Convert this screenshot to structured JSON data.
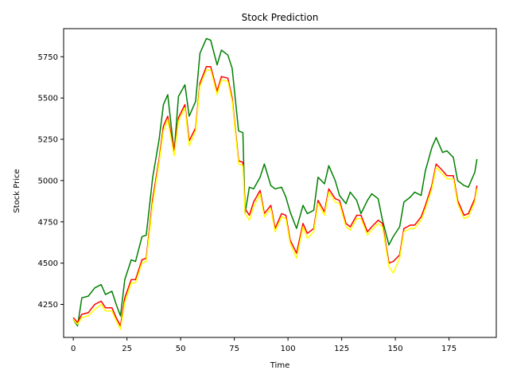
{
  "chart_data": {
    "type": "line",
    "title": "Stock Prediction",
    "xlabel": "Time",
    "ylabel": "Stock Price",
    "xlim": [
      -4.5,
      197
    ],
    "ylim": [
      4050,
      5920
    ],
    "xticks": [
      0,
      25,
      50,
      75,
      100,
      125,
      150,
      175
    ],
    "yticks": [
      4250,
      4500,
      4750,
      5000,
      5250,
      5500,
      5750
    ],
    "grid": false,
    "legend": "none",
    "series": [
      {
        "color": "#008000",
        "x": [
          0,
          2,
          4,
          7,
          10,
          13,
          15,
          18,
          20,
          22,
          24,
          27,
          29,
          32,
          34,
          37,
          40,
          42,
          44,
          47,
          49,
          52,
          54,
          57,
          59,
          62,
          64,
          67,
          69,
          72,
          74,
          77,
          79,
          80,
          82,
          84,
          87,
          89,
          92,
          94,
          97,
          99,
          101,
          104,
          107,
          109,
          112,
          114,
          117,
          119,
          122,
          124,
          127,
          129,
          132,
          134,
          137,
          139,
          142,
          144,
          147,
          149,
          152,
          154,
          157,
          159,
          162,
          164,
          167,
          169,
          172,
          174,
          177,
          179,
          182,
          184,
          187,
          188
        ],
        "values": [
          4160,
          4120,
          4290,
          4300,
          4350,
          4370,
          4310,
          4330,
          4250,
          4180,
          4400,
          4520,
          4510,
          4660,
          4670,
          5020,
          5250,
          5460,
          5520,
          5170,
          5510,
          5580,
          5390,
          5480,
          5770,
          5860,
          5850,
          5700,
          5790,
          5760,
          5680,
          5300,
          5290,
          4800,
          4960,
          4950,
          5020,
          5100,
          4970,
          4950,
          4960,
          4900,
          4810,
          4710,
          4850,
          4800,
          4820,
          5020,
          4980,
          5090,
          5000,
          4910,
          4860,
          4930,
          4880,
          4800,
          4880,
          4920,
          4890,
          4760,
          4610,
          4660,
          4720,
          4870,
          4900,
          4930,
          4910,
          5060,
          5200,
          5260,
          5170,
          5180,
          5140,
          5000,
          4970,
          4960,
          5050,
          5130
        ]
      },
      {
        "color": "#ff0000",
        "x": [
          0,
          2,
          4,
          7,
          10,
          13,
          15,
          18,
          20,
          22,
          24,
          27,
          29,
          32,
          34,
          37,
          40,
          42,
          44,
          47,
          49,
          52,
          54,
          57,
          59,
          62,
          64,
          67,
          69,
          72,
          74,
          77,
          79,
          80,
          82,
          84,
          87,
          89,
          92,
          94,
          97,
          99,
          101,
          104,
          107,
          109,
          112,
          114,
          117,
          119,
          122,
          124,
          127,
          129,
          132,
          134,
          137,
          139,
          142,
          144,
          147,
          149,
          152,
          154,
          157,
          159,
          162,
          164,
          167,
          169,
          172,
          174,
          177,
          179,
          182,
          184,
          187,
          188
        ],
        "values": [
          4170,
          4140,
          4190,
          4200,
          4250,
          4270,
          4230,
          4230,
          4170,
          4120,
          4290,
          4400,
          4400,
          4520,
          4530,
          4890,
          5130,
          5330,
          5390,
          5180,
          5380,
          5460,
          5240,
          5320,
          5590,
          5690,
          5690,
          5540,
          5630,
          5620,
          5500,
          5120,
          5110,
          4830,
          4790,
          4870,
          4940,
          4800,
          4850,
          4710,
          4800,
          4790,
          4640,
          4560,
          4740,
          4680,
          4710,
          4880,
          4810,
          4950,
          4890,
          4880,
          4740,
          4720,
          4790,
          4790,
          4690,
          4720,
          4760,
          4740,
          4500,
          4510,
          4550,
          4710,
          4730,
          4730,
          4780,
          4850,
          4970,
          5100,
          5060,
          5030,
          5030,
          4880,
          4790,
          4800,
          4890,
          4970
        ]
      },
      {
        "color": "#ffff00",
        "x": [
          0,
          2,
          4,
          7,
          10,
          13,
          15,
          18,
          20,
          22,
          24,
          27,
          29,
          32,
          34,
          37,
          40,
          42,
          44,
          47,
          49,
          52,
          54,
          57,
          59,
          62,
          64,
          67,
          69,
          72,
          74,
          77,
          79,
          80,
          82,
          84,
          87,
          89,
          92,
          94,
          97,
          99,
          101,
          104,
          107,
          109,
          112,
          114,
          117,
          119,
          122,
          124,
          127,
          129,
          132,
          134,
          137,
          139,
          142,
          144,
          147,
          149,
          152,
          154,
          157,
          159,
          162,
          164,
          167,
          169,
          172,
          174,
          177,
          179,
          182,
          184,
          187,
          188
        ],
        "values": [
          4160,
          4130,
          4170,
          4180,
          4220,
          4250,
          4210,
          4210,
          4150,
          4100,
          4260,
          4380,
          4380,
          4500,
          4510,
          4860,
          5110,
          5300,
          5370,
          5150,
          5360,
          5440,
          5210,
          5300,
          5570,
          5670,
          5670,
          5520,
          5610,
          5600,
          5480,
          5100,
          5090,
          4800,
          4760,
          4840,
          4920,
          4780,
          4830,
          4690,
          4780,
          4770,
          4620,
          4530,
          4720,
          4650,
          4690,
          4860,
          4790,
          4930,
          4870,
          4860,
          4720,
          4700,
          4770,
          4770,
          4670,
          4700,
          4740,
          4720,
          4480,
          4440,
          4530,
          4690,
          4710,
          4710,
          4760,
          4830,
          4950,
          5080,
          5040,
          5010,
          5010,
          4860,
          4770,
          4780,
          4870,
          4950
        ]
      }
    ]
  }
}
